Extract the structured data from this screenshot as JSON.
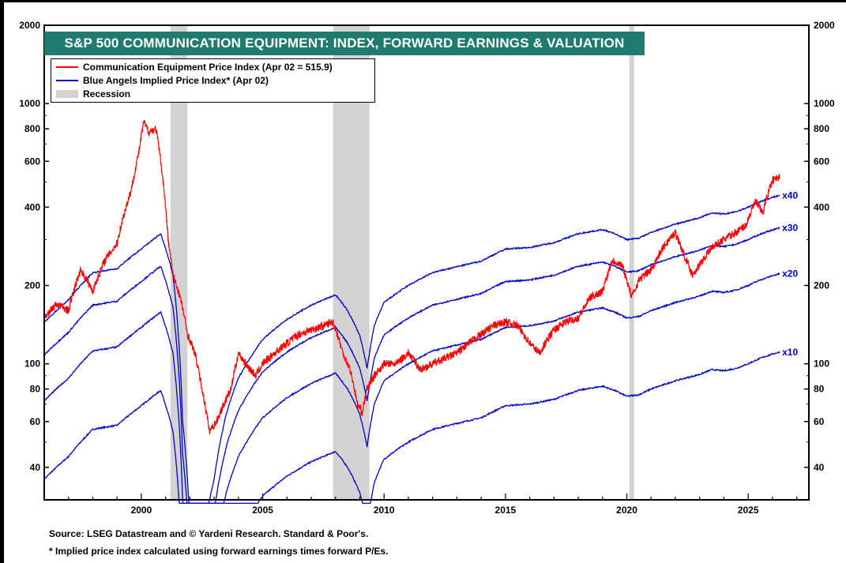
{
  "chart_data": {
    "type": "line",
    "title": "S&P 500 COMMUNICATION EQUIPMENT: INDEX, FORWARD EARNINGS & VALUATION",
    "y_scale": "log",
    "ylim": [
      30,
      2000
    ],
    "xlim": [
      1996.0,
      2027.5
    ],
    "y_ticks": [
      2000,
      1000,
      800,
      600,
      400,
      200,
      100,
      80,
      60,
      40
    ],
    "x_ticks": [
      2000,
      2005,
      2010,
      2015,
      2020,
      2025
    ],
    "legend": {
      "position": "top-left",
      "entries": [
        {
          "label": "Communication Equipment Price Index (Apr 02 = 515.9)",
          "color": "#ff0000",
          "kind": "line"
        },
        {
          "label": "Blue Angels Implied Price Index* (Apr 02)",
          "color": "#0000cc",
          "kind": "line"
        },
        {
          "label": "Recession",
          "color": "#d3d3d3",
          "kind": "band"
        }
      ]
    },
    "recessions": [
      [
        2001.2,
        2001.9
      ],
      [
        2007.9,
        2009.4
      ],
      [
        2020.1,
        2020.3
      ]
    ],
    "forward_earnings": {
      "x": [
        1996.0,
        1997.0,
        1998.0,
        1999.0,
        2000.0,
        2000.8,
        2001.3,
        2001.7,
        2002.0,
        2002.5,
        2003.0,
        2003.5,
        2004.0,
        2005.0,
        2006.0,
        2007.0,
        2008.0,
        2008.5,
        2009.0,
        2009.3,
        2009.6,
        2010.0,
        2011.0,
        2012.0,
        2013.0,
        2014.0,
        2015.0,
        2016.0,
        2017.0,
        2018.0,
        2019.0,
        2019.5,
        2020.0,
        2020.5,
        2021.0,
        2022.0,
        2023.0,
        2023.5,
        2024.0,
        2024.5,
        2025.0,
        2025.5,
        2026.0,
        2026.3
      ],
      "y": [
        3.6,
        4.4,
        5.6,
        5.8,
        6.9,
        7.9,
        5.5,
        1.5,
        0.6,
        0.5,
        0.9,
        1.6,
        2.2,
        3.1,
        3.7,
        4.2,
        4.6,
        4.0,
        3.2,
        2.4,
        3.5,
        4.3,
        5.0,
        5.6,
        5.9,
        6.2,
        6.9,
        7.0,
        7.3,
        7.9,
        8.2,
        7.9,
        7.5,
        7.6,
        8.0,
        8.6,
        9.1,
        9.5,
        9.4,
        9.6,
        10.0,
        10.5,
        10.9,
        11.1
      ]
    },
    "series": [
      {
        "name": "Communication Equipment Price Index (Apr 02 = 515.9)",
        "color": "#ff0000",
        "x": [
          1996.0,
          1996.5,
          1997.0,
          1997.5,
          1998.0,
          1998.5,
          1999.0,
          1999.3,
          1999.6,
          1999.9,
          2000.1,
          2000.3,
          2000.6,
          2000.9,
          2001.1,
          2001.3,
          2001.6,
          2001.9,
          2002.2,
          2002.5,
          2002.8,
          2003.1,
          2003.4,
          2003.7,
          2004.0,
          2004.3,
          2004.7,
          2005.0,
          2005.5,
          2006.0,
          2006.5,
          2007.0,
          2007.5,
          2007.9,
          2008.3,
          2008.6,
          2008.9,
          2009.1,
          2009.3,
          2009.6,
          2010.0,
          2010.5,
          2011.0,
          2011.5,
          2012.0,
          2012.5,
          2013.0,
          2013.5,
          2014.0,
          2014.5,
          2015.0,
          2015.5,
          2016.0,
          2016.4,
          2017.0,
          2017.5,
          2018.0,
          2018.5,
          2019.0,
          2019.4,
          2019.8,
          2020.2,
          2020.5,
          2021.0,
          2021.5,
          2022.0,
          2022.3,
          2022.7,
          2023.0,
          2023.5,
          2024.0,
          2024.5,
          2024.9,
          2025.3,
          2025.6,
          2026.0,
          2026.3
        ],
        "y": [
          150,
          170,
          160,
          230,
          190,
          250,
          290,
          380,
          470,
          650,
          850,
          780,
          800,
          500,
          300,
          220,
          180,
          130,
          110,
          80,
          55,
          60,
          70,
          80,
          110,
          100,
          90,
          100,
          110,
          120,
          130,
          135,
          140,
          145,
          110,
          95,
          70,
          65,
          80,
          90,
          100,
          100,
          110,
          95,
          100,
          105,
          110,
          120,
          130,
          140,
          145,
          140,
          120,
          110,
          135,
          145,
          150,
          180,
          190,
          250,
          240,
          180,
          210,
          230,
          280,
          320,
          270,
          220,
          240,
          280,
          300,
          320,
          340,
          420,
          380,
          510,
          520
        ]
      },
      {
        "name": "x10",
        "color": "#0000cc",
        "label_value": "x10",
        "multiplier": 10
      },
      {
        "name": "x20",
        "color": "#0000cc",
        "label_value": "x20",
        "multiplier": 20
      },
      {
        "name": "x30",
        "color": "#0000cc",
        "label_value": "x30",
        "multiplier": 30
      },
      {
        "name": "x40",
        "color": "#0000cc",
        "label_value": "x40",
        "multiplier": 40
      }
    ]
  },
  "footer": {
    "source": "Source: LSEG Datastream and © Yardeni Research. Standard & Poor's.",
    "note": "* Implied price index calculated using forward earnings times forward P/Es."
  }
}
